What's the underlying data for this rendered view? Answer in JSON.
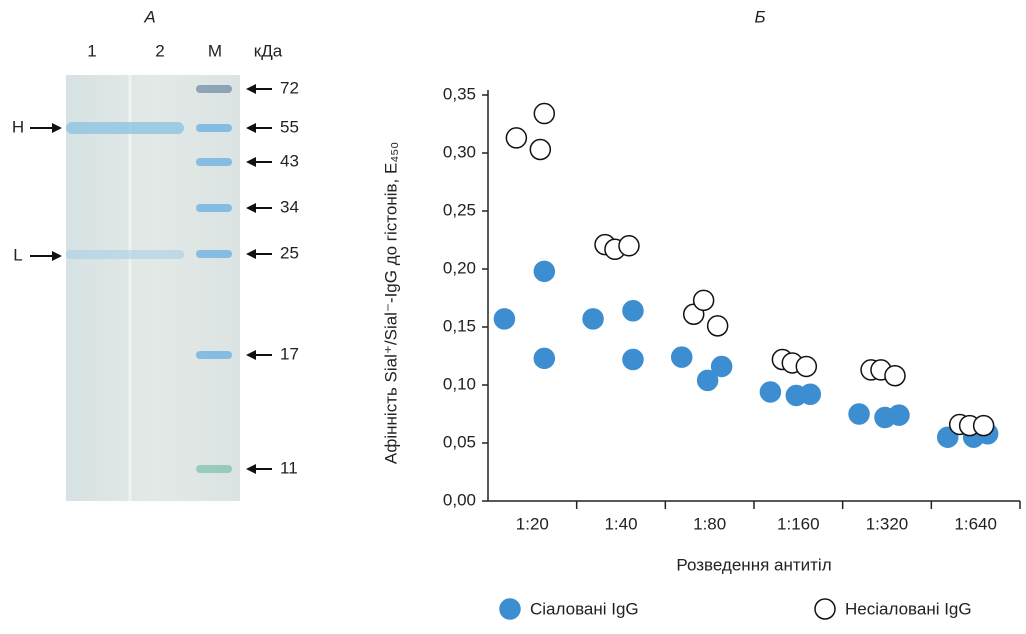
{
  "panel_a": {
    "title": "А",
    "lanes": [
      "1",
      "2",
      "М"
    ],
    "unit": "кДа",
    "markers": [
      72,
      55,
      43,
      34,
      25,
      17,
      11
    ],
    "chains": [
      "H",
      "L"
    ]
  },
  "chart_data": {
    "type": "scatter",
    "title": "Б",
    "y_label": "Афінність Sial⁺/Sial⁻-IgG до гістонів, E₄₅₀",
    "x_label": "Розведення антитіл",
    "categories": [
      "1:20",
      "1:40",
      "1:80",
      "1:160",
      "1:320",
      "1:640"
    ],
    "ylim": [
      0,
      0.35
    ],
    "yticks": [
      {
        "value": 0,
        "label": "0,00"
      },
      {
        "value": 0.05,
        "label": "0,05"
      },
      {
        "value": 0.1,
        "label": "0,10"
      },
      {
        "value": 0.15,
        "label": "0,15"
      },
      {
        "value": 0.2,
        "label": "0,20"
      },
      {
        "value": 0.25,
        "label": "0,25"
      },
      {
        "value": 0.3,
        "label": "0,30"
      },
      {
        "value": 0.35,
        "label": "0,35"
      }
    ],
    "series": [
      {
        "name": "Сіаловані IgG",
        "color": "#3d8ed0",
        "values": [
          [
            0.157,
            0.198,
            0.123
          ],
          [
            0.157,
            0.164,
            0.122
          ],
          [
            0.124,
            0.104,
            0.116
          ],
          [
            0.094,
            0.091,
            0.092
          ],
          [
            0.075,
            0.072,
            0.074
          ],
          [
            0.055,
            0.055,
            0.058
          ]
        ]
      },
      {
        "name": "Несіаловані IgG",
        "color": "#ffffff",
        "values": [
          [
            0.313,
            0.334,
            0.303
          ],
          [
            0.221,
            0.217,
            0.22
          ],
          [
            0.161,
            0.173,
            0.151
          ],
          [
            0.122,
            0.119,
            0.116
          ],
          [
            0.113,
            0.113,
            0.108
          ],
          [
            0.066,
            0.065,
            0.065
          ]
        ]
      }
    ]
  }
}
